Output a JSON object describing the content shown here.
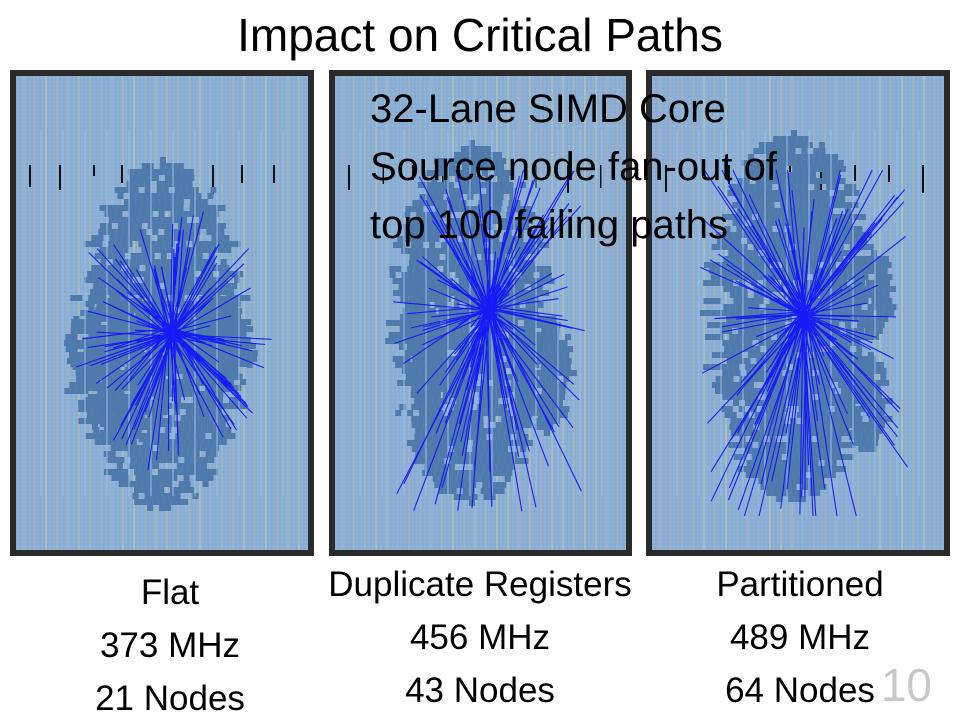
{
  "slide": {
    "title": "Impact on Critical Paths",
    "overlay_lines": [
      "32-Lane SIMD Core",
      "Source node fan-out of",
      "top 100 failing paths"
    ],
    "page_number": "10"
  },
  "panels": [
    {
      "label": "Flat",
      "frequency": "373 MHz",
      "nodes": "21 Nodes"
    },
    {
      "label": "Duplicate Registers",
      "frequency": "456 MHz",
      "nodes": "43 Nodes"
    },
    {
      "label": "Partitioned",
      "frequency": "489 MHz",
      "nodes": "64 Nodes"
    }
  ],
  "colors": {
    "die_background": "#8fb3d9",
    "placed_logic": "#4f7bac",
    "paths": "#1010ff",
    "frame": "#2a2a2a"
  }
}
